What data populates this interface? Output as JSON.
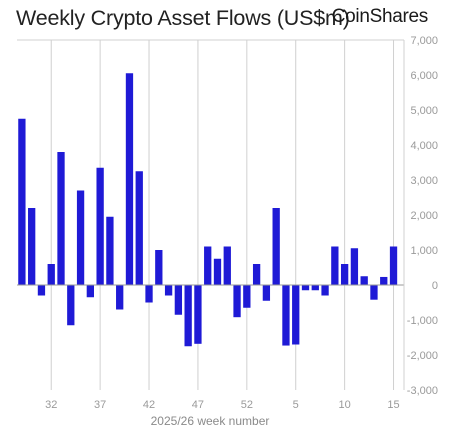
{
  "header": {
    "title": "Weekly Crypto Asset Flows (US$m)",
    "brand": "CoinShares"
  },
  "colors": {
    "bar": "#1f1ad6",
    "grid": "#d0d0d0",
    "zero_line": "#9a9a9a",
    "tick_text": "#9a9a9a",
    "axis_label_text": "#8a8a8a"
  },
  "chart_data": {
    "type": "bar",
    "title": "Weekly Crypto Asset Flows (US$m)",
    "xlabel": "2025/26 week number",
    "ylabel": "",
    "ylim": [
      -3000,
      7000
    ],
    "yticks": [
      -3000,
      -2000,
      -1000,
      0,
      1000,
      2000,
      3000,
      4000,
      5000,
      6000,
      7000
    ],
    "ytick_labels": [
      "-3,000",
      "-2,000",
      "-1,000",
      "0",
      "1,000",
      "2,000",
      "3,000",
      "4,000",
      "5,000",
      "6,000",
      "7,000"
    ],
    "xtick_labels": [
      "32",
      "37",
      "42",
      "47",
      "52",
      "5",
      "10",
      "15"
    ],
    "xtick_positions": [
      31,
      36,
      41,
      46,
      51,
      56,
      61,
      66
    ],
    "x_first": 28,
    "x": [
      28,
      29,
      30,
      31,
      32,
      33,
      34,
      35,
      36,
      37,
      38,
      39,
      40,
      41,
      42,
      43,
      44,
      45,
      46,
      47,
      48,
      49,
      50,
      51,
      52,
      53,
      54,
      55,
      56,
      57,
      58,
      59,
      60,
      61,
      62,
      63,
      64,
      65,
      66
    ],
    "values": [
      4750,
      2200,
      -300,
      600,
      3800,
      -1150,
      2700,
      -350,
      3350,
      1950,
      -700,
      6050,
      3250,
      -500,
      1000,
      -300,
      -850,
      -1750,
      -1680,
      1100,
      750,
      1100,
      -920,
      -650,
      600,
      -450,
      2200,
      -1730,
      -1700,
      -150,
      -150,
      -300,
      1100,
      600,
      1050,
      250,
      -420,
      230,
      1100
    ],
    "grid": "vertical at x ticks, none horizontal",
    "legend": "none"
  }
}
